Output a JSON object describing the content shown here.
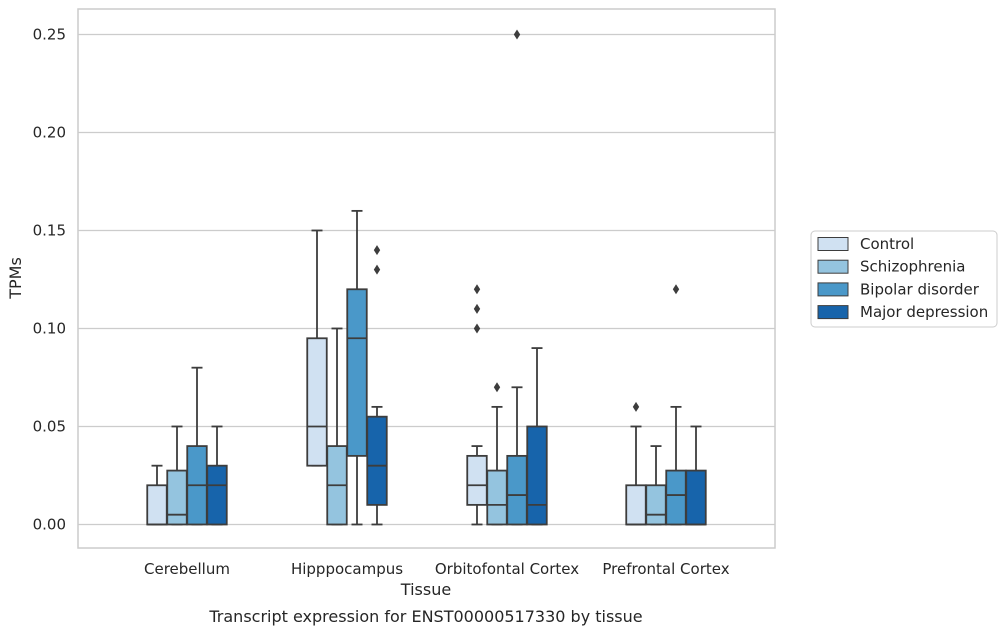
{
  "caption": "Transcript expression for ENST00000517330 by tissue",
  "chart_data": {
    "type": "box",
    "xlabel": "Tissue",
    "ylabel": "TPMs",
    "ylim": [
      -0.012,
      0.263
    ],
    "yticks": [
      "0.00",
      "0.05",
      "0.10",
      "0.15",
      "0.20",
      "0.25"
    ],
    "grid": "horizontal",
    "legend_position": "right",
    "categories": [
      "Cerebellum",
      "Hipppocampus",
      "Orbitofontal Cortex",
      "Prefrontal Cortex"
    ],
    "series": [
      {
        "name": "Control",
        "color": "#d0e1f2",
        "boxes": [
          {
            "whisker_low": 0,
            "q1": 0,
            "median": 0,
            "q3": 0.02,
            "whisker_high": 0.03,
            "outliers": []
          },
          {
            "whisker_low": 0.03,
            "q1": 0.03,
            "median": 0.05,
            "q3": 0.095,
            "whisker_high": 0.15,
            "outliers": []
          },
          {
            "whisker_low": 0,
            "q1": 0.01,
            "median": 0.02,
            "q3": 0.035,
            "whisker_high": 0.04,
            "outliers": [
              0.1,
              0.11,
              0.12
            ]
          },
          {
            "whisker_low": 0,
            "q1": 0,
            "median": 0,
            "q3": 0.02,
            "whisker_high": 0.05,
            "outliers": [
              0.06
            ]
          }
        ]
      },
      {
        "name": "Schizophrenia",
        "color": "#94c4df",
        "boxes": [
          {
            "whisker_low": 0,
            "q1": 0,
            "median": 0.005,
            "q3": 0.0275,
            "whisker_high": 0.05,
            "outliers": []
          },
          {
            "whisker_low": 0,
            "q1": 0,
            "median": 0.02,
            "q3": 0.04,
            "whisker_high": 0.1,
            "outliers": []
          },
          {
            "whisker_low": 0,
            "q1": 0,
            "median": 0.01,
            "q3": 0.0275,
            "whisker_high": 0.06,
            "outliers": [
              0.07
            ]
          },
          {
            "whisker_low": 0,
            "q1": 0,
            "median": 0.005,
            "q3": 0.02,
            "whisker_high": 0.04,
            "outliers": []
          }
        ]
      },
      {
        "name": "Bipolar disorder",
        "color": "#4a98c9",
        "boxes": [
          {
            "whisker_low": 0,
            "q1": 0,
            "median": 0.02,
            "q3": 0.04,
            "whisker_high": 0.08,
            "outliers": []
          },
          {
            "whisker_low": 0,
            "q1": 0.035,
            "median": 0.095,
            "q3": 0.12,
            "whisker_high": 0.16,
            "outliers": []
          },
          {
            "whisker_low": 0,
            "q1": 0,
            "median": 0.015,
            "q3": 0.035,
            "whisker_high": 0.07,
            "outliers": [
              0.25
            ]
          },
          {
            "whisker_low": 0,
            "q1": 0,
            "median": 0.015,
            "q3": 0.0275,
            "whisker_high": 0.06,
            "outliers": [
              0.12
            ]
          }
        ]
      },
      {
        "name": "Major depression",
        "color": "#1764ab",
        "boxes": [
          {
            "whisker_low": 0,
            "q1": 0,
            "median": 0.02,
            "q3": 0.03,
            "whisker_high": 0.05,
            "outliers": []
          },
          {
            "whisker_low": 0,
            "q1": 0.01,
            "median": 0.03,
            "q3": 0.055,
            "whisker_high": 0.06,
            "outliers": [
              0.13,
              0.14
            ]
          },
          {
            "whisker_low": 0,
            "q1": 0,
            "median": 0.01,
            "q3": 0.05,
            "whisker_high": 0.09,
            "outliers": []
          },
          {
            "whisker_low": 0,
            "q1": 0,
            "median": 0,
            "q3": 0.0275,
            "whisker_high": 0.05,
            "outliers": []
          }
        ]
      }
    ]
  }
}
